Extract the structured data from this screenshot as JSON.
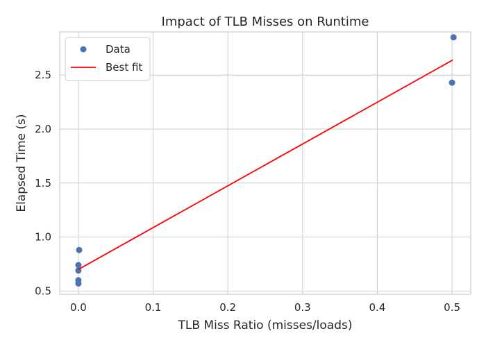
{
  "chart_data": {
    "type": "scatter",
    "title": "Impact of TLB Misses on Runtime",
    "xlabel": "TLB Miss Ratio (misses/loads)",
    "ylabel": "Elapsed Time (s)",
    "xlim": [
      -0.025,
      0.525
    ],
    "ylim": [
      0.47,
      2.9
    ],
    "xticks": [
      0.0,
      0.1,
      0.2,
      0.3,
      0.4,
      0.5
    ],
    "xtick_labels": [
      "0.0",
      "0.1",
      "0.2",
      "0.3",
      "0.4",
      "0.5"
    ],
    "yticks": [
      0.5,
      1.0,
      1.5,
      2.0,
      2.5
    ],
    "ytick_labels": [
      "0.5",
      "1.0",
      "1.5",
      "2.0",
      "2.5"
    ],
    "grid": true,
    "legend_position": "top-left",
    "series": [
      {
        "name": "Data",
        "kind": "scatter",
        "color": "#4c72b0",
        "points": [
          {
            "x": 0.0,
            "y": 0.57
          },
          {
            "x": 0.0,
            "y": 0.6
          },
          {
            "x": 0.0,
            "y": 0.69
          },
          {
            "x": 0.0,
            "y": 0.74
          },
          {
            "x": 0.001,
            "y": 0.88
          },
          {
            "x": 0.5,
            "y": 2.43
          },
          {
            "x": 0.502,
            "y": 2.85
          }
        ]
      },
      {
        "name": "Best fit",
        "kind": "line",
        "color": "#ff0000",
        "points": [
          {
            "x": 0.0,
            "y": 0.7
          },
          {
            "x": 0.501,
            "y": 2.64
          }
        ]
      }
    ]
  }
}
